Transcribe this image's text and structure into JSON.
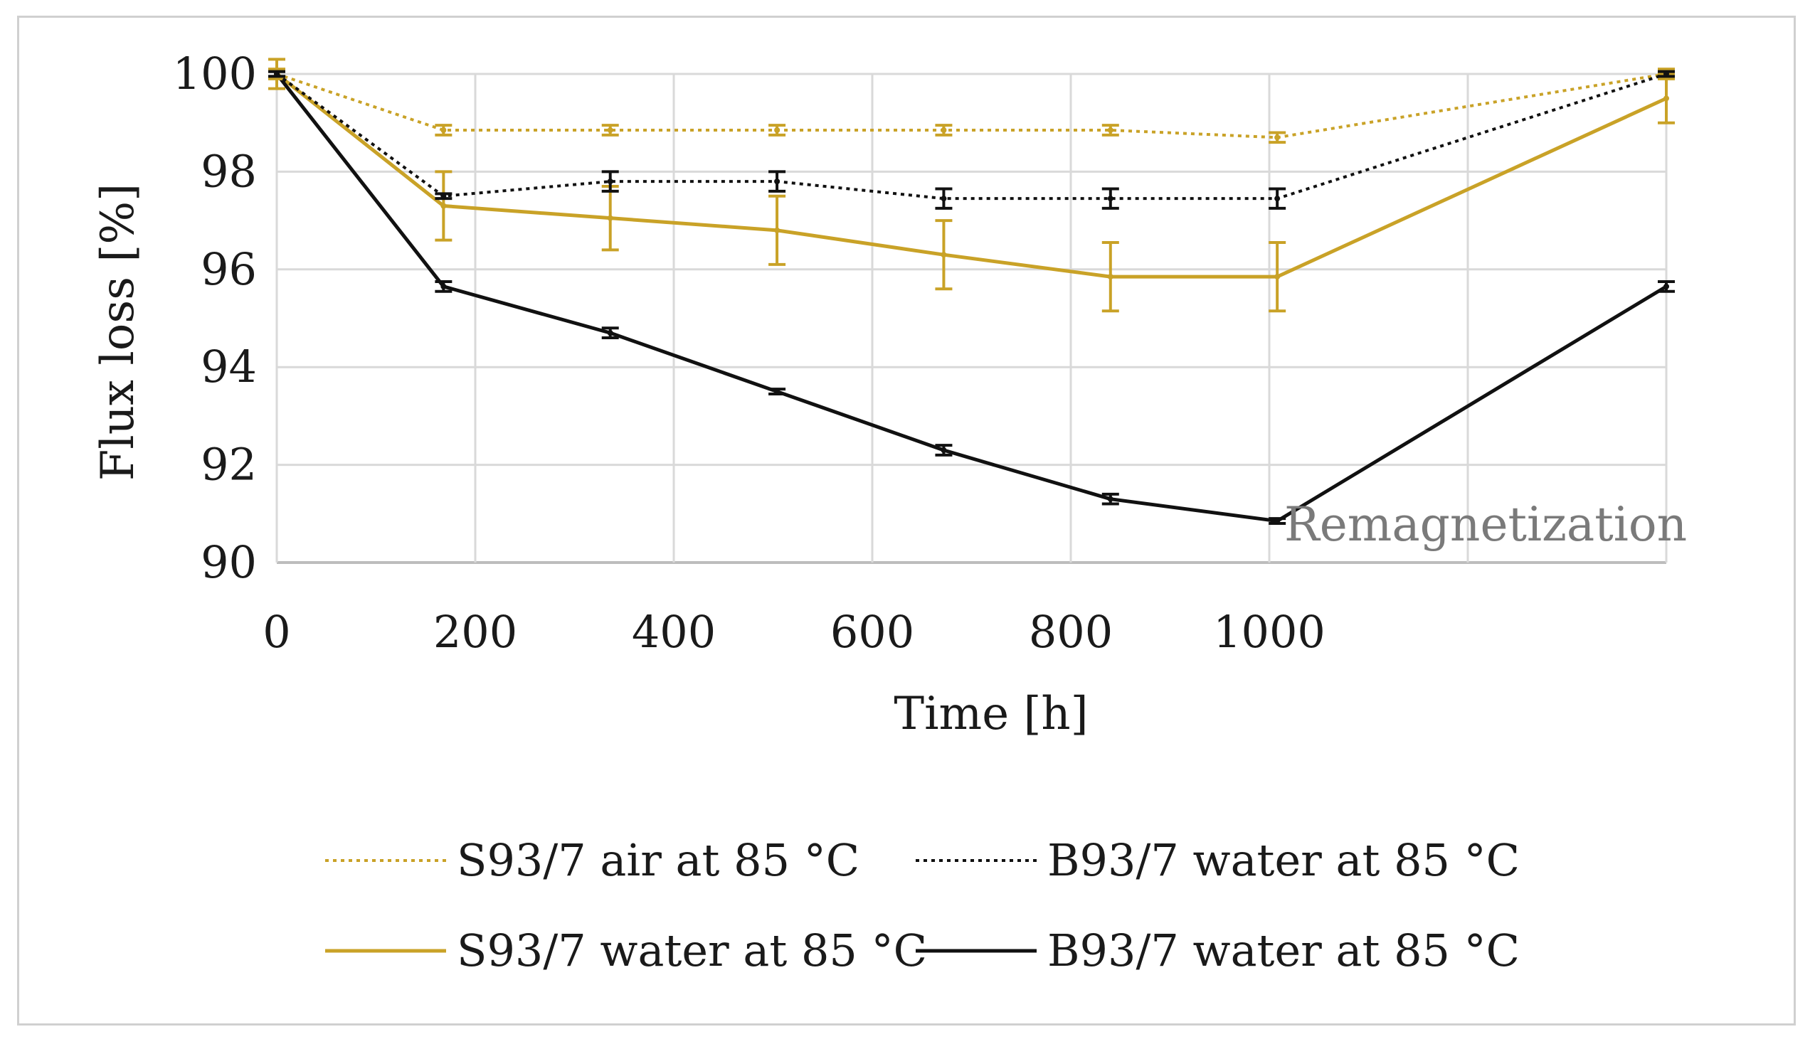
{
  "colors": {
    "gold": "#c9a227",
    "black": "#111111",
    "grid": "#d9d9d9"
  },
  "chart_data": {
    "type": "line",
    "title": "",
    "xlabel": "Time [h]",
    "ylabel": "Flux loss [%]",
    "xlim": [
      0,
      1400
    ],
    "ylim": [
      90,
      100
    ],
    "x_ticks": [
      "0",
      "200",
      "400",
      "600",
      "800",
      "1000"
    ],
    "y_ticks": [
      "90",
      "92",
      "94",
      "96",
      "98",
      "100"
    ],
    "annotation": "Remagnetization",
    "series": [
      {
        "name": "S93/7 air at 85 °C",
        "color": "#c9a227",
        "style": "dotted",
        "x": [
          0,
          168,
          336,
          504,
          672,
          840,
          1008,
          1400
        ],
        "values": [
          100,
          98.85,
          98.85,
          98.85,
          98.85,
          98.85,
          98.7,
          100
        ],
        "errors": [
          0.1,
          0.1,
          0.1,
          0.1,
          0.1,
          0.1,
          0.1,
          0.1
        ]
      },
      {
        "name": "B93/7  water at 85 °C",
        "color": "#111111",
        "style": "dotted",
        "x": [
          0,
          168,
          336,
          504,
          672,
          840,
          1008,
          1400
        ],
        "values": [
          100,
          97.5,
          97.8,
          97.8,
          97.45,
          97.45,
          97.45,
          100
        ],
        "errors": [
          0.05,
          0.05,
          0.2,
          0.2,
          0.2,
          0.2,
          0.2,
          0.05
        ]
      },
      {
        "name": "S93/7 water at 85 °C",
        "color": "#c9a227",
        "style": "solid",
        "x": [
          0,
          168,
          336,
          504,
          672,
          840,
          1008,
          1400
        ],
        "values": [
          100,
          97.3,
          97.05,
          96.8,
          96.3,
          95.85,
          95.85,
          99.5
        ],
        "errors": [
          0.3,
          0.7,
          0.65,
          0.7,
          0.7,
          0.7,
          0.7,
          0.5
        ]
      },
      {
        "name": "B93/7  water at 85 °C",
        "color": "#111111",
        "style": "solid",
        "x": [
          0,
          168,
          336,
          504,
          672,
          840,
          1008,
          1400
        ],
        "values": [
          100,
          95.65,
          94.7,
          93.5,
          92.3,
          91.3,
          90.85,
          95.65
        ],
        "errors": [
          0.05,
          0.1,
          0.1,
          0.05,
          0.1,
          0.1,
          0.05,
          0.1
        ]
      }
    ]
  }
}
